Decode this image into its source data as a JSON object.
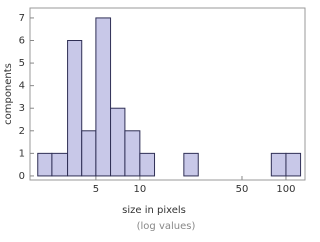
{
  "chart_data": {
    "type": "histogram",
    "x_label": "size in pixels",
    "x_sublabel": "(log values)",
    "y_label": "components",
    "bins": [
      2,
      2.5,
      3.2,
      4,
      5,
      6.3,
      7.9,
      10,
      12.6,
      15.8,
      20,
      25.1,
      31.6,
      39.8,
      50.1,
      63.1,
      79.4,
      100,
      125.9
    ],
    "values": [
      1,
      1,
      6,
      2,
      7,
      3,
      2,
      1,
      0,
      0,
      1,
      0,
      0,
      0,
      0,
      0,
      1,
      1
    ],
    "color": "#c8c8e8",
    "edge_color": "#2f2f55",
    "xscale": "log",
    "xlim": [
      1.77,
      135
    ],
    "xticks": [
      5,
      10,
      50,
      100
    ],
    "ylim": [
      -0.18,
      7.44
    ],
    "yticks": [
      0,
      1,
      2,
      3,
      4,
      5,
      6,
      7
    ]
  }
}
